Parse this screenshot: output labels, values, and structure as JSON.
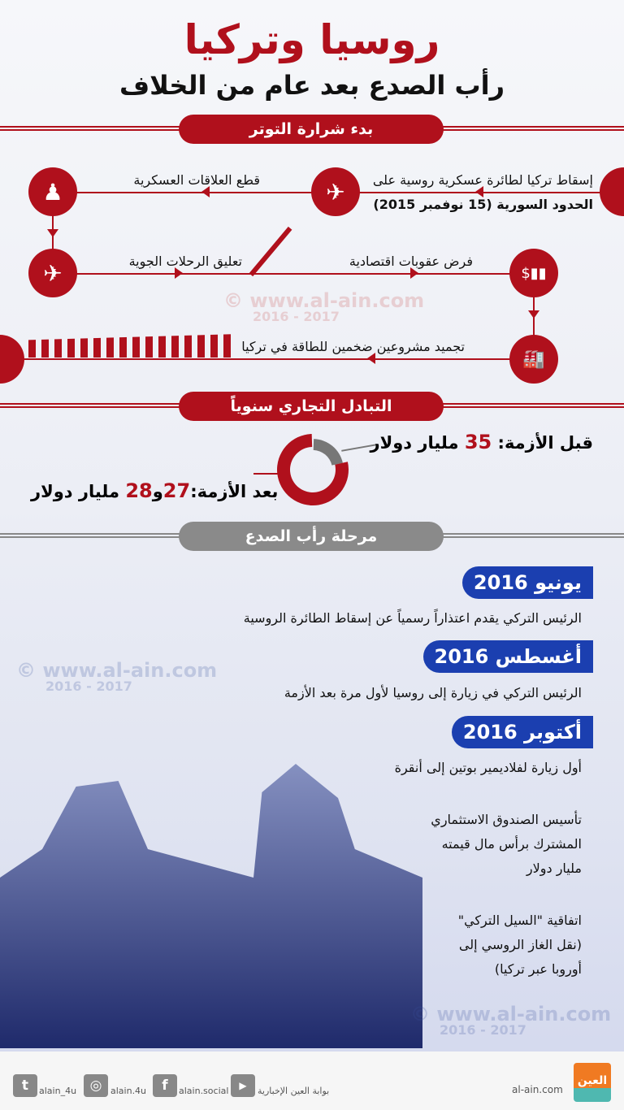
{
  "header": {
    "title": "روسيا وتركيا",
    "subtitle": "رأب الصدع بعد عام من الخلاف"
  },
  "section1": {
    "label": "بدء شرارة التوتر",
    "events": [
      {
        "text1": "إسقاط تركيا لطائرة عسكرية روسية على",
        "text2": "الحدود السورية (15 نوفمبر 2015)",
        "icon": "fighter-jet-icon"
      },
      {
        "text": "قطع العلاقات العسكرية",
        "icon": "soldier-icon"
      },
      {
        "text": "تعليق الرحلات الجوية",
        "icon": "airplane-icon"
      },
      {
        "text": "فرض عقوبات اقتصادية",
        "icon": "money-chart-icon"
      },
      {
        "text": "تجميد مشروعين ضخمين للطاقة في تركيا",
        "icon": "factory-icon"
      }
    ]
  },
  "watermark": {
    "site": "www.al-ain.com",
    "years": "2016 - 2017"
  },
  "section2": {
    "label": "التبادل التجاري سنوياً",
    "before_label": "قبل الأزمة:",
    "before_value": "35",
    "before_unit": "مليار دولار",
    "after_label": "بعد الأزمة:",
    "after_value1": "27",
    "after_and": "و",
    "after_value2": "28",
    "after_unit": "مليار دولار"
  },
  "chart_data": {
    "type": "pie",
    "categories": [
      "قبل الأزمة",
      "بعد الأزمة"
    ],
    "values": [
      35,
      27.5
    ],
    "colors": {
      "before": "#777777",
      "after": "#b0101c"
    }
  },
  "section3": {
    "label": "مرحلة رأب الصدع",
    "milestones": [
      {
        "date": "يونيو 2016",
        "items": [
          "الرئيس التركي يقدم اعتذاراً رسمياً عن إسقاط الطائرة الروسية"
        ]
      },
      {
        "date": "أغسطس 2016",
        "items": [
          "الرئيس التركي في زيارة إلى روسيا لأول مرة بعد الأزمة"
        ]
      },
      {
        "date": "أكتوبر 2016",
        "items": [
          "أول زيارة لفلاديمير بوتين إلى أنقرة",
          "تأسيس الصندوق الاستثماري",
          "المشترك برأس مال قيمته",
          "مليار دولار",
          "اتفاقية \"السيل التركي\"",
          "(نقل الغاز الروسي إلى",
          "أوروبا عبر تركيا)"
        ]
      }
    ]
  },
  "footer": {
    "twitter": "alain_4u",
    "instagram": "alain.4u",
    "facebook": "alain.social",
    "youtube": "بوابة العين الإخبارية",
    "site": "al-ain.com",
    "logo": "العين"
  },
  "colors": {
    "accent": "#b0101c",
    "blue": "#1b3fb0",
    "gray": "#8a8a8a"
  }
}
